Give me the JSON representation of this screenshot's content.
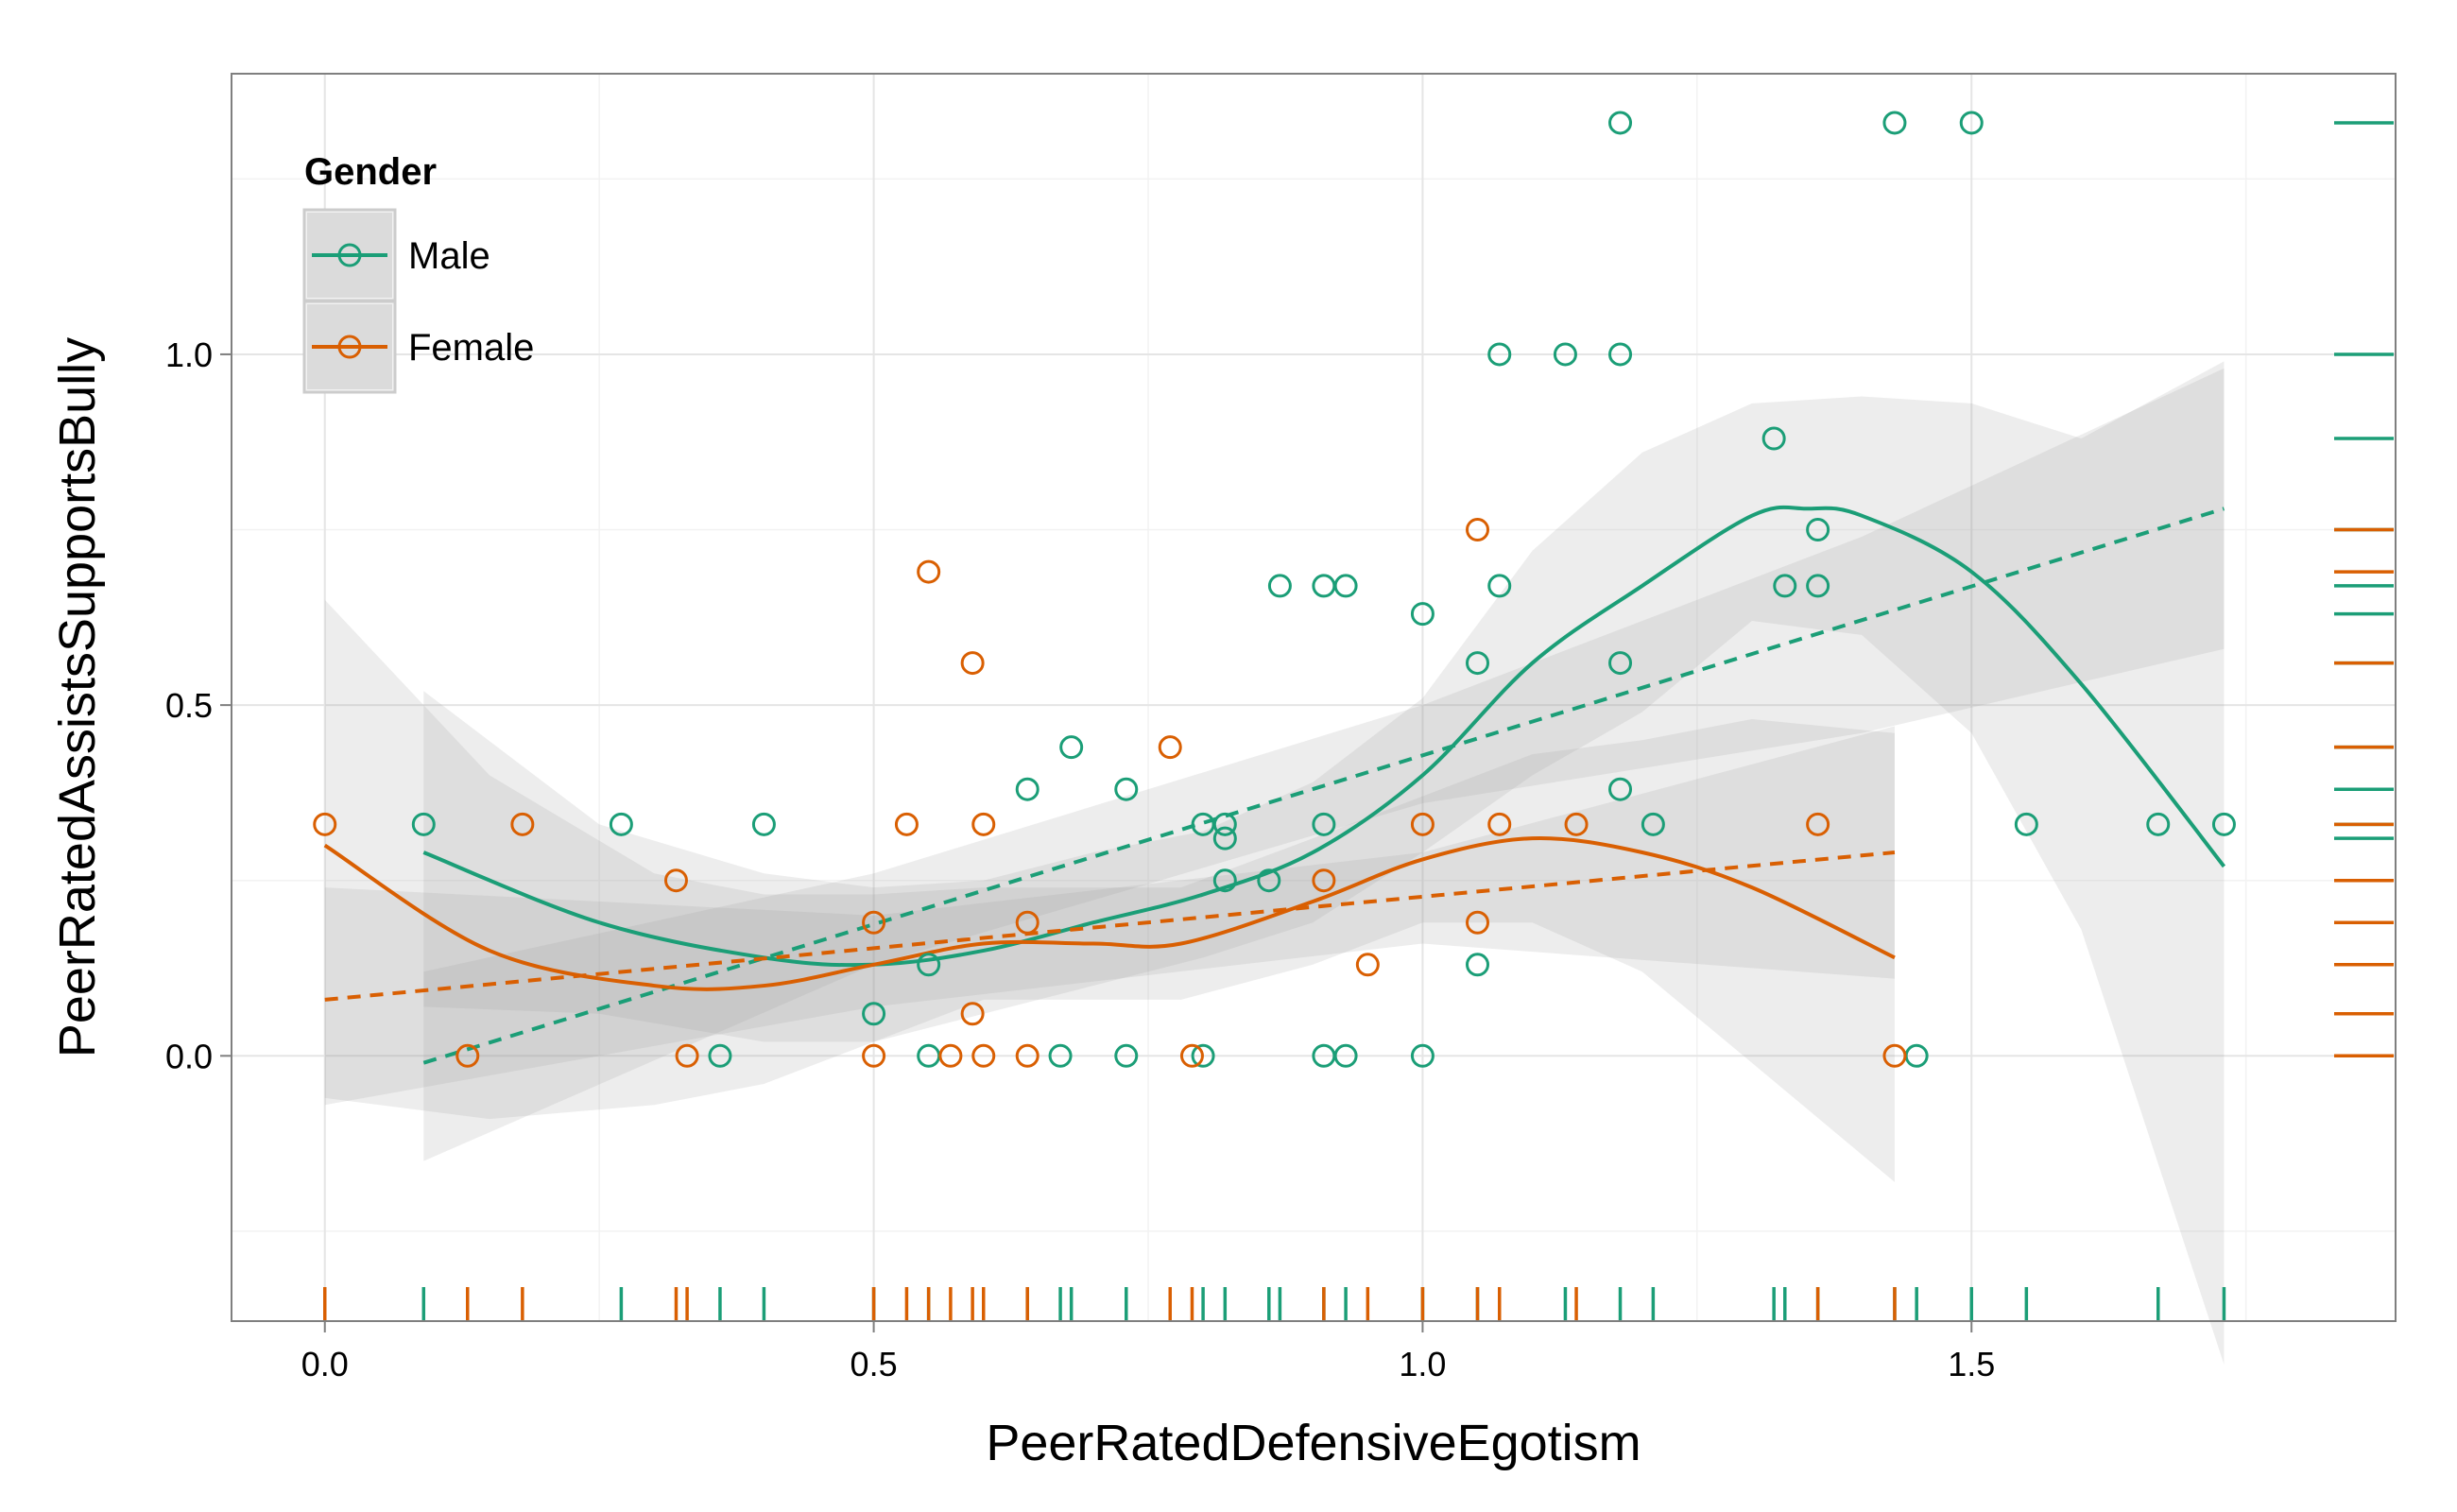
{
  "chart_data": {
    "type": "scatter",
    "xlabel": "PeerRatedDefensiveEgotism",
    "ylabel": "PeerRatedAssistsSupportsBully",
    "xlim": [
      -0.085,
      1.82
    ],
    "ylim": [
      -0.3,
      1.4
    ],
    "x_ticks": [
      0.0,
      0.5,
      1.0,
      1.5
    ],
    "x_tick_labels": [
      "0.0",
      "0.5",
      "1.0",
      "1.5"
    ],
    "y_ticks": [
      0.0,
      0.5,
      1.0
    ],
    "y_tick_labels": [
      "0.0",
      "0.5",
      "1.0"
    ],
    "grid": true,
    "legend": {
      "title": "Gender",
      "position": "top-left",
      "entries": [
        {
          "name": "Male",
          "color": "#1b9e77"
        },
        {
          "name": "Female",
          "color": "#d95f02"
        }
      ]
    },
    "series": [
      {
        "name": "Male",
        "color": "#1b9e77",
        "points": [
          [
            0.09,
            0.33
          ],
          [
            0.27,
            0.33
          ],
          [
            0.36,
            0.0
          ],
          [
            0.4,
            0.33
          ],
          [
            0.5,
            0.06
          ],
          [
            0.55,
            0.13
          ],
          [
            0.55,
            0.0
          ],
          [
            0.64,
            0.38
          ],
          [
            0.67,
            0.0
          ],
          [
            0.68,
            0.44
          ],
          [
            0.73,
            0.38
          ],
          [
            0.73,
            0.0
          ],
          [
            0.8,
            0.33
          ],
          [
            0.8,
            0.0
          ],
          [
            0.82,
            0.33
          ],
          [
            0.82,
            0.31
          ],
          [
            0.82,
            0.25
          ],
          [
            0.86,
            0.25
          ],
          [
            0.87,
            0.67
          ],
          [
            0.91,
            0.67
          ],
          [
            0.91,
            0.33
          ],
          [
            0.91,
            0.0
          ],
          [
            0.93,
            0.67
          ],
          [
            0.93,
            0.0
          ],
          [
            1.0,
            0.63
          ],
          [
            1.0,
            0.0
          ],
          [
            1.05,
            0.56
          ],
          [
            1.05,
            0.13
          ],
          [
            1.07,
            1.0
          ],
          [
            1.07,
            0.67
          ],
          [
            1.13,
            1.0
          ],
          [
            1.18,
            1.33
          ],
          [
            1.18,
            1.0
          ],
          [
            1.18,
            0.56
          ],
          [
            1.18,
            0.38
          ],
          [
            1.21,
            0.33
          ],
          [
            1.32,
            0.88
          ],
          [
            1.33,
            0.67
          ],
          [
            1.36,
            0.75
          ],
          [
            1.36,
            0.67
          ],
          [
            1.43,
            1.33
          ],
          [
            1.45,
            0.0
          ],
          [
            1.5,
            1.33
          ],
          [
            1.55,
            0.33
          ],
          [
            1.67,
            0.33
          ],
          [
            1.73,
            0.33
          ]
        ],
        "linear_fit": [
          [
            0.09,
            -0.01
          ],
          [
            1.73,
            0.78
          ]
        ],
        "smooth_fit": [
          [
            0.09,
            0.29
          ],
          [
            0.25,
            0.19
          ],
          [
            0.4,
            0.14
          ],
          [
            0.5,
            0.13
          ],
          [
            0.6,
            0.15
          ],
          [
            0.7,
            0.19
          ],
          [
            0.8,
            0.23
          ],
          [
            0.9,
            0.29
          ],
          [
            1.0,
            0.4
          ],
          [
            1.1,
            0.56
          ],
          [
            1.2,
            0.67
          ],
          [
            1.3,
            0.77
          ],
          [
            1.35,
            0.78
          ],
          [
            1.4,
            0.77
          ],
          [
            1.5,
            0.69
          ],
          [
            1.6,
            0.53
          ],
          [
            1.73,
            0.27
          ]
        ],
        "smooth_band": [
          [
            0.09,
            0.52,
            0.07
          ],
          [
            0.25,
            0.33,
            0.06
          ],
          [
            0.4,
            0.26,
            0.02
          ],
          [
            0.5,
            0.24,
            0.02
          ],
          [
            0.6,
            0.25,
            0.06
          ],
          [
            0.7,
            0.29,
            0.1
          ],
          [
            0.8,
            0.32,
            0.14
          ],
          [
            0.9,
            0.39,
            0.19
          ],
          [
            1.0,
            0.51,
            0.29
          ],
          [
            1.1,
            0.72,
            0.4
          ],
          [
            1.2,
            0.86,
            0.49
          ],
          [
            1.3,
            0.93,
            0.62
          ],
          [
            1.4,
            0.94,
            0.6
          ],
          [
            1.5,
            0.93,
            0.46
          ],
          [
            1.6,
            0.88,
            0.18
          ],
          [
            1.73,
            0.99,
            -0.44
          ]
        ],
        "linear_band": [
          [
            0.09,
            0.12,
            -0.15
          ],
          [
            0.5,
            0.26,
            0.13
          ],
          [
            1.0,
            0.5,
            0.36
          ],
          [
            1.4,
            0.74,
            0.46
          ],
          [
            1.73,
            0.98,
            0.58
          ]
        ]
      },
      {
        "name": "Female",
        "color": "#d95f02",
        "points": [
          [
            0.0,
            0.33
          ],
          [
            0.13,
            0.0
          ],
          [
            0.18,
            0.33
          ],
          [
            0.32,
            0.25
          ],
          [
            0.33,
            0.0
          ],
          [
            0.5,
            0.19
          ],
          [
            0.5,
            0.0
          ],
          [
            0.53,
            0.33
          ],
          [
            0.55,
            0.69
          ],
          [
            0.57,
            0.0
          ],
          [
            0.59,
            0.56
          ],
          [
            0.59,
            0.06
          ],
          [
            0.6,
            0.33
          ],
          [
            0.6,
            0.0
          ],
          [
            0.64,
            0.19
          ],
          [
            0.64,
            0.0
          ],
          [
            0.77,
            0.44
          ],
          [
            0.79,
            0.0
          ],
          [
            0.91,
            0.25
          ],
          [
            0.95,
            0.13
          ],
          [
            1.0,
            0.33
          ],
          [
            1.05,
            0.75
          ],
          [
            1.05,
            0.19
          ],
          [
            1.07,
            0.33
          ],
          [
            1.14,
            0.33
          ],
          [
            1.36,
            0.33
          ],
          [
            1.43,
            0.0
          ]
        ],
        "linear_fit": [
          [
            0.0,
            0.08
          ],
          [
            1.43,
            0.29
          ]
        ],
        "smooth_fit": [
          [
            0.0,
            0.3
          ],
          [
            0.15,
            0.15
          ],
          [
            0.3,
            0.1
          ],
          [
            0.4,
            0.1
          ],
          [
            0.5,
            0.13
          ],
          [
            0.6,
            0.16
          ],
          [
            0.7,
            0.16
          ],
          [
            0.78,
            0.16
          ],
          [
            0.9,
            0.22
          ],
          [
            1.0,
            0.28
          ],
          [
            1.1,
            0.31
          ],
          [
            1.2,
            0.29
          ],
          [
            1.3,
            0.24
          ],
          [
            1.43,
            0.14
          ]
        ],
        "smooth_band": [
          [
            0.0,
            0.65,
            -0.06
          ],
          [
            0.15,
            0.4,
            -0.09
          ],
          [
            0.3,
            0.26,
            -0.07
          ],
          [
            0.4,
            0.23,
            -0.04
          ],
          [
            0.5,
            0.23,
            0.02
          ],
          [
            0.6,
            0.24,
            0.08
          ],
          [
            0.7,
            0.24,
            0.08
          ],
          [
            0.78,
            0.24,
            0.08
          ],
          [
            0.9,
            0.31,
            0.13
          ],
          [
            1.0,
            0.37,
            0.19
          ],
          [
            1.1,
            0.43,
            0.19
          ],
          [
            1.2,
            0.45,
            0.12
          ],
          [
            1.3,
            0.48,
            -0.01
          ],
          [
            1.43,
            0.46,
            -0.18
          ]
        ],
        "linear_band": [
          [
            0.0,
            0.24,
            -0.07
          ],
          [
            0.5,
            0.2,
            0.07
          ],
          [
            1.0,
            0.29,
            0.16
          ],
          [
            1.43,
            0.47,
            0.11
          ]
        ]
      }
    ]
  }
}
